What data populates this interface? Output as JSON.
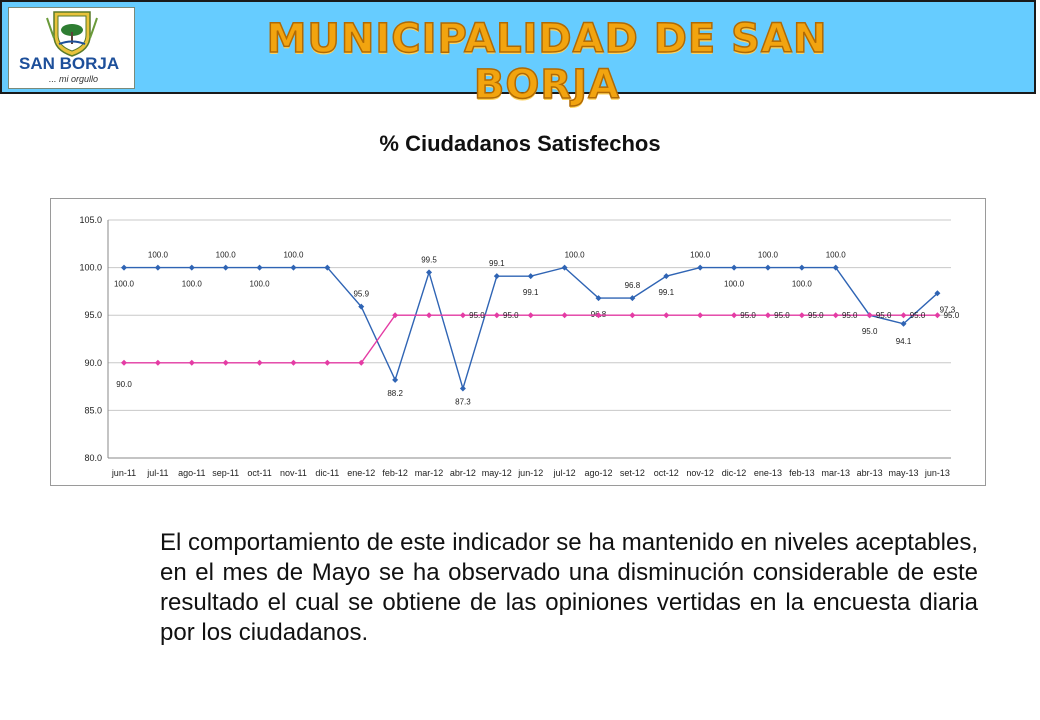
{
  "header": {
    "logo_name": "SAN BORJA",
    "logo_tagline": "... mi orgullo",
    "banner_title": "MUNICIPALIDAD DE SAN BORJA",
    "background_color": "#66ccff",
    "banner_color": "#f2a40f"
  },
  "slide_title": "% Ciudadanos Satisfechos",
  "body_text": "El comportamiento de este indicador se ha mantenido en niveles aceptables, en el mes de Mayo se ha observado una disminución considerable  de este resultado el cual se obtiene de las opiniones vertidas en la encuesta diaria por los ciudadanos.",
  "chart_data": {
    "type": "line",
    "title": "",
    "xlabel": "",
    "ylabel": "",
    "ylim": [
      80,
      105
    ],
    "yticks": [
      "80.0",
      "85.0",
      "90.0",
      "95.0",
      "100.0",
      "105.0"
    ],
    "grid": true,
    "legend": "none",
    "categories": [
      "jun-11",
      "jul-11",
      "ago-11",
      "sep-11",
      "oct-11",
      "nov-11",
      "dic-11",
      "ene-12",
      "feb-12",
      "mar-12",
      "abr-12",
      "may-12",
      "jun-12",
      "jul-12",
      "ago-12",
      "set-12",
      "oct-12",
      "nov-12",
      "dic-12",
      "ene-13",
      "feb-13",
      "mar-13",
      "abr-13",
      "may-13",
      "jun-13"
    ],
    "series": [
      {
        "color": "#2f64b4",
        "marker": "diamond",
        "values": [
          100.0,
          100.0,
          100.0,
          100.0,
          100.0,
          100.0,
          100.0,
          95.9,
          88.2,
          99.5,
          87.3,
          99.1,
          99.1,
          100.0,
          96.8,
          96.8,
          99.1,
          100.0,
          100.0,
          100.0,
          100.0,
          100.0,
          95.0,
          94.1,
          97.3
        ],
        "labels": [
          "100.0",
          "100.0",
          "100.0",
          "100.0",
          "100.0",
          "100.0",
          "",
          "95.9",
          "88.2",
          "99.5",
          "87.3",
          "99.1",
          "99.1",
          "100.0",
          "96.8",
          "96.8",
          "99.1",
          "100.0",
          "100.0",
          "100.0",
          "100.0",
          "100.0",
          "95.0",
          "94.1",
          "97.3"
        ]
      },
      {
        "color": "#e43ca4",
        "marker": "diamond",
        "values": [
          90.0,
          90.0,
          90.0,
          90.0,
          90.0,
          90.0,
          90.0,
          90.0,
          95.0,
          95.0,
          95.0,
          95.0,
          95.0,
          95.0,
          95.0,
          95.0,
          95.0,
          95.0,
          95.0,
          95.0,
          95.0,
          95.0,
          95.0,
          95.0,
          95.0
        ],
        "labels": [
          "90.0",
          "",
          "",
          "",
          "",
          "",
          "",
          "",
          "",
          "",
          "95.0",
          "95.0",
          "",
          "",
          "",
          "",
          "",
          "",
          "95.0",
          "95.0",
          "95.0",
          "95.0",
          "95.0",
          "95.0",
          "95.0"
        ]
      }
    ]
  }
}
